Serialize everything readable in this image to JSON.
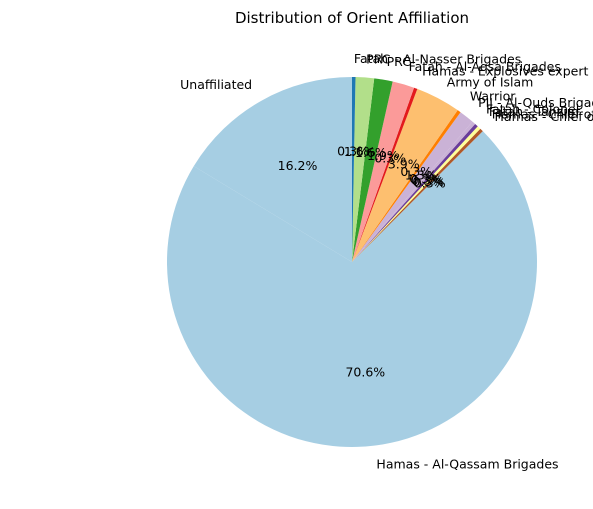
{
  "chart_data": {
    "type": "pie",
    "title": "Distribution of Orient Affiliation",
    "start_angle_deg": 90,
    "direction": "counterclockwise",
    "slices": [
      {
        "label": "Unaffiliated",
        "value": 16.2,
        "pct_label": "16.2%",
        "color": "#a6cee3"
      },
      {
        "label": "Hamas - Al-Qassam Brigades",
        "value": 70.6,
        "pct_label": "70.6%",
        "color": "#a6cee3"
      },
      {
        "label": "Hamas - Chief of Police",
        "value": 0.3,
        "pct_label": "0.3%",
        "color": "#b15928"
      },
      {
        "label": "Hamas - Chief of Staff",
        "value": 0.3,
        "pct_label": "0.3%",
        "color": "#ffff99"
      },
      {
        "label": "Fatah - Tanzim",
        "value": 0.3,
        "pct_label": "0.3%",
        "color": "#6a3d9a"
      },
      {
        "label": "Fatah - Colonel",
        "value": 0.3,
        "pct_label": "0.3%",
        "color": "#cab2d6"
      },
      {
        "label": "PIJ - Al-Quds Brigades",
        "value": 1.3,
        "pct_label": "1.3%",
        "color": "#cab2d6"
      },
      {
        "label": "Warrior",
        "value": 0.3,
        "pct_label": "0.3%",
        "color": "#ff7f00"
      },
      {
        "label": "Army of Islam",
        "value": 3.9,
        "pct_label": "3.9%",
        "color": "#fdbf6f"
      },
      {
        "label": "Hamas - Explosives expert",
        "value": 0.3,
        "pct_label": "0.3%",
        "color": "#e31a1c"
      },
      {
        "label": "Fatah - Al-Aqsa Brigades",
        "value": 1.9,
        "pct_label": "1.9%",
        "color": "#fb9a99"
      },
      {
        "label": "PRC",
        "value": 1.6,
        "pct_label": "1.6%",
        "color": "#33a02c"
      },
      {
        "label": "PRC - Al-Nasser Brigades",
        "value": 1.6,
        "pct_label": "1.6%",
        "color": "#b2df8a"
      },
      {
        "label": "Fatah",
        "value": 0.3,
        "pct_label": "0.3%",
        "color": "#1f78b4"
      }
    ]
  }
}
